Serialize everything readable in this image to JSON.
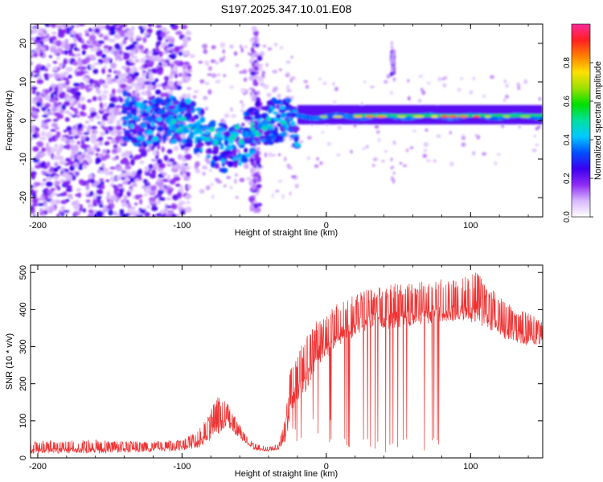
{
  "figure_title": "S197.2025.347.10.01.E08",
  "chart_data": [
    {
      "type": "heatmap",
      "title": "S197.2025.347.10.01.E08",
      "xlabel": "Height of straight line (km)",
      "ylabel": "Frequency (Hz)",
      "xlim": [
        -205,
        150
      ],
      "ylim": [
        -25,
        25
      ],
      "xticks": [
        -200,
        -100,
        0,
        100
      ],
      "yticks": [
        -20,
        -10,
        0,
        10,
        20
      ],
      "colorbar": {
        "label": "Normalized spectral amplitude",
        "range": [
          0.0,
          1.0
        ],
        "ticks": [
          0.0,
          0.2,
          0.4,
          0.6,
          0.8
        ],
        "colors": [
          "#ffffff",
          "#d8b8ff",
          "#8f2bf5",
          "#3a00f0",
          "#0050ff",
          "#00c8ff",
          "#00e0a0",
          "#00e000",
          "#9be000",
          "#ffe000",
          "#ff8000",
          "#ff2020",
          "#ff2a9a"
        ]
      },
      "features": [
        {
          "name": "dominant-tone",
          "x_range": [
            -20,
            150
          ],
          "frequency": 1.0,
          "amplitude": 0.8
        },
        {
          "name": "isolated-tone",
          "x": 46,
          "frequency": 15,
          "amplitude": 0.3
        },
        {
          "name": "broadband-noise",
          "x_range": [
            -205,
            -100
          ],
          "frequency_range": [
            -25,
            25
          ],
          "amplitude": 0.12
        }
      ]
    },
    {
      "type": "line",
      "title": "",
      "xlabel": "Height of straight line (km)",
      "ylabel": "SNR (10 * v/v)",
      "xlim": [
        -205,
        150
      ],
      "ylim": [
        0,
        520
      ],
      "xticks": [
        -200,
        -100,
        0,
        100
      ],
      "yticks": [
        0,
        100,
        200,
        300,
        400,
        500
      ],
      "line_color": "#ee3333",
      "series": [
        {
          "name": "SNR",
          "x": [
            -205,
            -180,
            -160,
            -140,
            -120,
            -100,
            -90,
            -80,
            -75,
            -70,
            -65,
            -60,
            -55,
            -50,
            -40,
            -33,
            -28,
            -25,
            -20,
            -15,
            -10,
            -5,
            0,
            5,
            10,
            15,
            20,
            25,
            30,
            40,
            50,
            60,
            70,
            80,
            90,
            100,
            105,
            110,
            120,
            130,
            140,
            150
          ],
          "baseline": [
            18,
            20,
            20,
            20,
            22,
            25,
            35,
            60,
            80,
            100,
            80,
            60,
            40,
            25,
            20,
            25,
            60,
            130,
            180,
            200,
            240,
            280,
            290,
            310,
            330,
            340,
            350,
            360,
            370,
            370,
            375,
            380,
            385,
            390,
            390,
            390,
            395,
            370,
            350,
            330,
            320,
            320
          ],
          "peak": [
            45,
            50,
            50,
            45,
            45,
            50,
            70,
            130,
            170,
            160,
            130,
            90,
            60,
            40,
            30,
            40,
            120,
            240,
            290,
            320,
            350,
            380,
            390,
            410,
            420,
            430,
            440,
            450,
            460,
            470,
            470,
            475,
            480,
            485,
            490,
            490,
            515,
            470,
            440,
            410,
            390,
            370
          ]
        }
      ]
    }
  ]
}
